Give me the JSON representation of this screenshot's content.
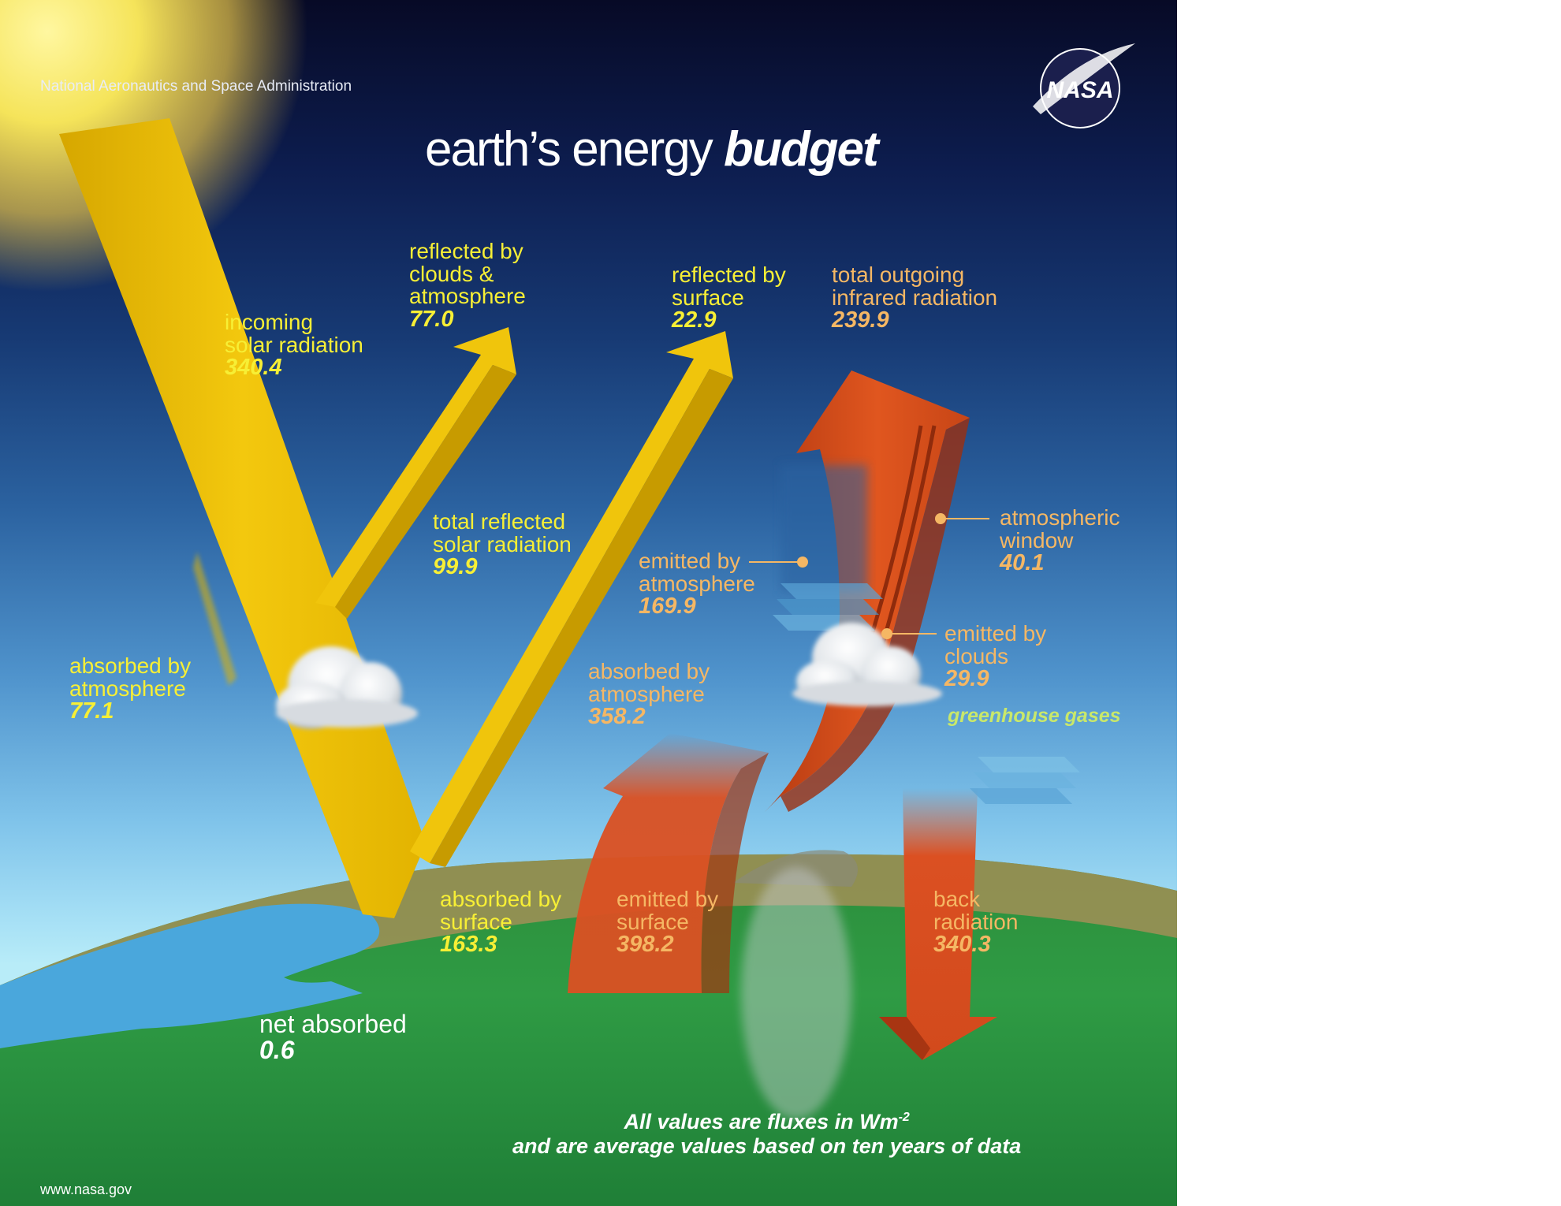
{
  "header": {
    "agency": "National Aeronautics and Space Administration",
    "title_regular": "earth’s energy ",
    "title_emphasis": "budget",
    "logo_text": "NASA"
  },
  "flows": {
    "incoming": {
      "label": [
        "incoming",
        "solar radiation"
      ],
      "value": "340.4"
    },
    "reflected_clouds": {
      "label": [
        "reflected by",
        "clouds &",
        "atmosphere"
      ],
      "value": "77.0"
    },
    "reflected_surface": {
      "label": [
        "reflected by",
        "surface"
      ],
      "value": "22.9"
    },
    "outgoing_ir": {
      "label": [
        "total outgoing",
        "infrared radiation"
      ],
      "value": "239.9"
    },
    "total_reflected": {
      "label": [
        "total reflected",
        "solar radiation"
      ],
      "value": "99.9"
    },
    "atmospheric_window": {
      "label": [
        "atmospheric",
        "window"
      ],
      "value": "40.1"
    },
    "emitted_atmosphere": {
      "label": [
        "emitted by",
        "atmosphere"
      ],
      "value": "169.9"
    },
    "absorbed_atmosphere_solar": {
      "label": [
        "absorbed by",
        "atmosphere"
      ],
      "value": "77.1"
    },
    "emitted_clouds": {
      "label": [
        "emitted by",
        "clouds"
      ],
      "value": "29.9"
    },
    "absorbed_atmosphere_ir": {
      "label": [
        "absorbed by",
        "atmosphere"
      ],
      "value": "358.2"
    },
    "absorbed_surface": {
      "label": [
        "absorbed by",
        "surface"
      ],
      "value": "163.3"
    },
    "emitted_surface": {
      "label": [
        "emitted by",
        "surface"
      ],
      "value": "398.2"
    },
    "back_radiation": {
      "label": [
        "back",
        "radiation"
      ],
      "value": "340.3"
    },
    "net_absorbed": {
      "label": [
        "net absorbed"
      ],
      "value": "0.6"
    }
  },
  "greenhouse_label": "greenhouse gases",
  "footnote": {
    "line1_prefix": "All values are fluxes in Wm",
    "line1_sup": "-2",
    "line2": "and are average values based on ten years of data"
  },
  "footer": {
    "url": "www.nasa.gov"
  },
  "colors": {
    "solar": "#f1c40c",
    "infrared": "#db5022",
    "label_solar": "#f7ef35",
    "label_infrared": "#f5b764",
    "ground": "#2f9b44"
  }
}
